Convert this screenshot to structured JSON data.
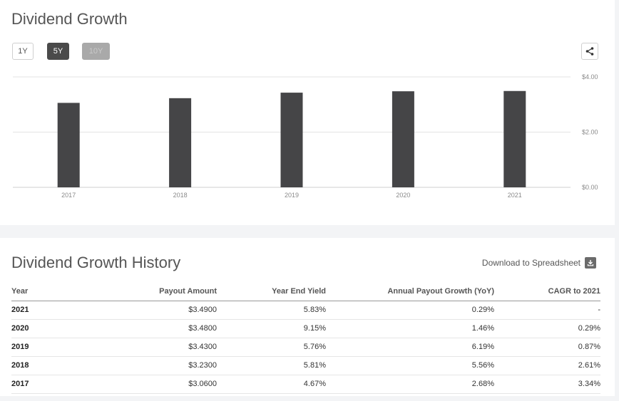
{
  "growth": {
    "title": "Dividend Growth",
    "ranges": [
      "1Y",
      "5Y",
      "10Y"
    ],
    "selected_range": "5Y",
    "share_icon": "share-icon"
  },
  "chart_data": {
    "type": "bar",
    "categories": [
      "2017",
      "2018",
      "2019",
      "2020",
      "2021"
    ],
    "values": [
      3.06,
      3.23,
      3.43,
      3.48,
      3.49
    ],
    "ylim": [
      0,
      4
    ],
    "y_ticks": [
      "$4.00",
      "$2.00",
      "$0.00"
    ],
    "y_tick_values": [
      4,
      2,
      0
    ],
    "bar_color": "#454547",
    "grid": true,
    "y_axis_side": "right",
    "title": "",
    "xlabel": "",
    "ylabel": ""
  },
  "history": {
    "title": "Dividend Growth History",
    "download_label": "Download to Spreadsheet",
    "download_icon": "download-icon",
    "columns": [
      "Year",
      "Payout Amount",
      "Year End Yield",
      "Annual Payout Growth (YoY)",
      "CAGR to 2021"
    ],
    "rows": [
      [
        "2021",
        "$3.4900",
        "5.83%",
        "0.29%",
        "-"
      ],
      [
        "2020",
        "$3.4800",
        "9.15%",
        "1.46%",
        "0.29%"
      ],
      [
        "2019",
        "$3.4300",
        "5.76%",
        "6.19%",
        "0.87%"
      ],
      [
        "2018",
        "$3.2300",
        "5.81%",
        "5.56%",
        "2.61%"
      ],
      [
        "2017",
        "$3.0600",
        "4.67%",
        "2.68%",
        "3.34%"
      ]
    ]
  }
}
